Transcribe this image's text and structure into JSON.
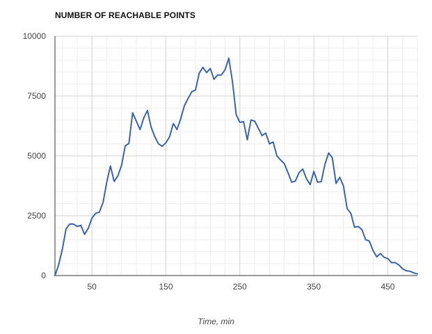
{
  "chart_data": {
    "type": "line",
    "title": "NUMBER OF REACHABLE POINTS",
    "xlabel": "Time, min",
    "ylabel": "",
    "xlim": [
      0,
      490
    ],
    "ylim": [
      0,
      10000
    ],
    "x_ticks": [
      50,
      150,
      250,
      350,
      450
    ],
    "y_ticks": [
      0,
      2500,
      5000,
      7500,
      10000
    ],
    "grid": true,
    "legend": "none",
    "line_color": "#3c64a8",
    "series": [
      {
        "name": "",
        "x": [
          0,
          5,
          10,
          15,
          20,
          25,
          30,
          35,
          40,
          45,
          50,
          55,
          60,
          65,
          70,
          75,
          80,
          85,
          90,
          95,
          100,
          105,
          110,
          115,
          120,
          125,
          130,
          135,
          140,
          145,
          150,
          155,
          160,
          165,
          170,
          175,
          180,
          185,
          190,
          195,
          200,
          205,
          210,
          215,
          220,
          225,
          230,
          235,
          240,
          245,
          250,
          255,
          260,
          265,
          270,
          275,
          280,
          285,
          290,
          295,
          300,
          305,
          310,
          315,
          320,
          325,
          330,
          335,
          340,
          345,
          350,
          355,
          360,
          365,
          370,
          375,
          380,
          385,
          390,
          395,
          400,
          405,
          410,
          415,
          420,
          425,
          430,
          435,
          440,
          445,
          450,
          455,
          460,
          465,
          470,
          475,
          480,
          485,
          490
        ],
        "values": [
          0,
          450,
          1100,
          1950,
          2150,
          2150,
          2050,
          2100,
          1720,
          1970,
          2400,
          2600,
          2650,
          3050,
          3900,
          4580,
          3930,
          4160,
          4600,
          5420,
          5520,
          6800,
          6450,
          6100,
          6580,
          6900,
          6200,
          5800,
          5500,
          5400,
          5550,
          5800,
          6350,
          6100,
          6550,
          7100,
          7400,
          7680,
          7750,
          8450,
          8700,
          8480,
          8650,
          8200,
          8380,
          8380,
          8600,
          9080,
          8100,
          6720,
          6400,
          6430,
          5670,
          6500,
          6450,
          6150,
          5850,
          5950,
          5500,
          5580,
          5000,
          4830,
          4680,
          4300,
          3900,
          3950,
          4300,
          4450,
          4050,
          3800,
          4350,
          3900,
          3920,
          4650,
          5120,
          4920,
          3850,
          4100,
          3750,
          2800,
          2600,
          2020,
          2050,
          1920,
          1500,
          1440,
          1050,
          780,
          920,
          760,
          710,
          540,
          540,
          440,
          280,
          200,
          180,
          110,
          70
        ]
      }
    ]
  }
}
